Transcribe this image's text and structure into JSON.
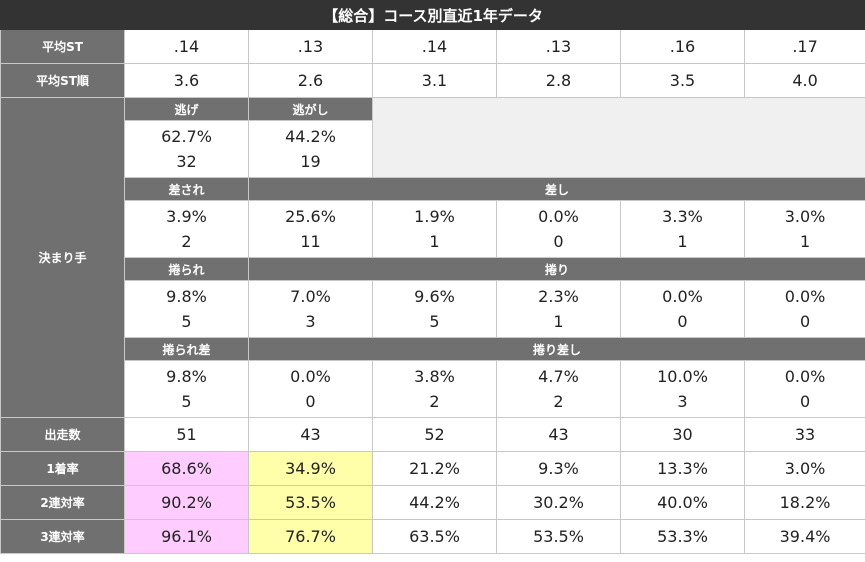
{
  "title": "【総合】コース別直近1年データ",
  "avg_st": {
    "label": "平均ST",
    "values": [
      ".14",
      ".13",
      ".14",
      ".13",
      ".16",
      ".17"
    ]
  },
  "avg_st_rank": {
    "label": "平均ST順",
    "values": [
      "3.6",
      "2.6",
      "3.1",
      "2.8",
      "3.5",
      "4.0"
    ]
  },
  "kimarite": {
    "label": "決まり手",
    "nige": {
      "label": "逃げ",
      "pct": "62.7%",
      "count": "32"
    },
    "nigashi": {
      "label": "逃がし",
      "pct": "44.2%",
      "count": "19"
    },
    "sasare": {
      "label": "差され",
      "pct": "3.9%",
      "count": "2"
    },
    "sashi": {
      "label": "差し",
      "cells": [
        {
          "pct": "25.6%",
          "count": "11"
        },
        {
          "pct": "1.9%",
          "count": "1"
        },
        {
          "pct": "0.0%",
          "count": "0"
        },
        {
          "pct": "3.3%",
          "count": "1"
        },
        {
          "pct": "3.0%",
          "count": "1"
        }
      ]
    },
    "makurare": {
      "label": "捲られ",
      "pct": "9.8%",
      "count": "5"
    },
    "makuri": {
      "label": "捲り",
      "cells": [
        {
          "pct": "7.0%",
          "count": "3"
        },
        {
          "pct": "9.6%",
          "count": "5"
        },
        {
          "pct": "2.3%",
          "count": "1"
        },
        {
          "pct": "0.0%",
          "count": "0"
        },
        {
          "pct": "0.0%",
          "count": "0"
        }
      ]
    },
    "makurare_sashi": {
      "label": "捲られ差",
      "pct": "9.8%",
      "count": "5"
    },
    "makuri_sashi": {
      "label": "捲り差し",
      "cells": [
        {
          "pct": "0.0%",
          "count": "0"
        },
        {
          "pct": "3.8%",
          "count": "2"
        },
        {
          "pct": "4.7%",
          "count": "2"
        },
        {
          "pct": "10.0%",
          "count": "3"
        },
        {
          "pct": "0.0%",
          "count": "0"
        }
      ]
    }
  },
  "starts": {
    "label": "出走数",
    "values": [
      "51",
      "43",
      "52",
      "43",
      "30",
      "33"
    ]
  },
  "win_rate": {
    "label": "1着率",
    "values": [
      "68.6%",
      "34.9%",
      "21.2%",
      "9.3%",
      "13.3%",
      "3.0%"
    ]
  },
  "top2_rate": {
    "label": "2連対率",
    "values": [
      "90.2%",
      "53.5%",
      "44.2%",
      "30.2%",
      "40.0%",
      "18.2%"
    ]
  },
  "top3_rate": {
    "label": "3連対率",
    "values": [
      "96.1%",
      "76.7%",
      "63.5%",
      "53.5%",
      "53.3%",
      "39.4%"
    ]
  },
  "colors": {
    "header_bg": "#707070",
    "title_bg": "#333333",
    "highlight_1": "#ffccff",
    "highlight_2": "#ffffaa"
  }
}
